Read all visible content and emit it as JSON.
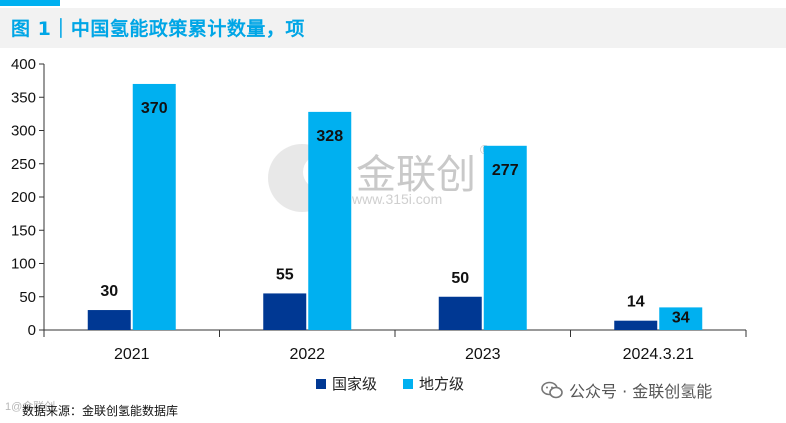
{
  "title": "图 1｜中国氢能政策累计数量，项",
  "colors": {
    "accent": "#00b0f0",
    "title_text": "#00a6e6",
    "national": "#003893",
    "local": "#00b0f0"
  },
  "watermark": {
    "brand": "金联创",
    "url": "www.315i.com",
    "corner": "1@金联创"
  },
  "wechat": {
    "icon": "wechat-icon",
    "text": "公众号 · 金联创氢能"
  },
  "source": "数据来源：金联创氢能数据库",
  "chart_data": {
    "type": "bar",
    "categories": [
      "2021",
      "2022",
      "2023",
      "2024.3.21"
    ],
    "series": [
      {
        "name": "国家级",
        "values": [
          30,
          55,
          50,
          14
        ],
        "color": "#003893"
      },
      {
        "name": "地方级",
        "values": [
          370,
          328,
          277,
          34
        ],
        "color": "#00b0f0"
      }
    ],
    "ylim": [
      0,
      400
    ],
    "yticks": [
      "0",
      "50",
      "100",
      "150",
      "200",
      "250",
      "300",
      "350",
      "400"
    ],
    "grid": false,
    "legend_position": "bottom-center",
    "data_labels": true
  }
}
